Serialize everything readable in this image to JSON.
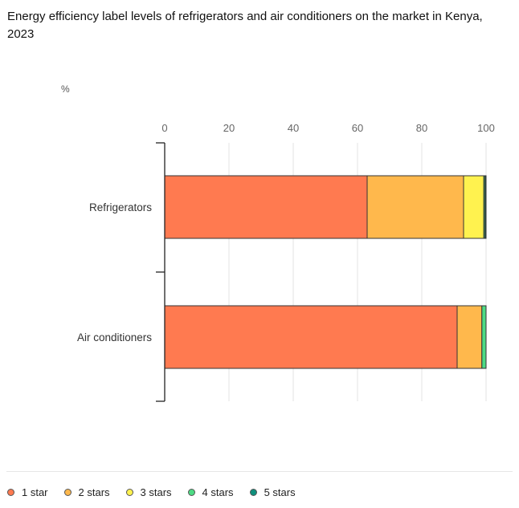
{
  "title": "Energy efficiency label levels of refrigerators and air conditioners on the market in Kenya, 2023",
  "unit_label": "%",
  "chart_data": {
    "type": "bar",
    "orientation": "horizontal",
    "stacked": true,
    "categories": [
      "Refrigerators",
      "Air conditioners"
    ],
    "series": [
      {
        "name": "1 star",
        "color": "#FF7A50",
        "values": [
          63,
          91
        ]
      },
      {
        "name": "2 stars",
        "color": "#FFB84C",
        "values": [
          30,
          7.7
        ]
      },
      {
        "name": "3 stars",
        "color": "#FFF24F",
        "values": [
          6.3,
          0
        ]
      },
      {
        "name": "4 stars",
        "color": "#4DDB84",
        "values": [
          0.4,
          1.3
        ]
      },
      {
        "name": "5 stars",
        "color": "#0F8F7C",
        "values": [
          0.3,
          0
        ]
      }
    ],
    "xlim": [
      0,
      100
    ],
    "xticks": [
      "0",
      "20",
      "40",
      "60",
      "80",
      "100"
    ],
    "grid": true,
    "legend_position": "bottom"
  }
}
